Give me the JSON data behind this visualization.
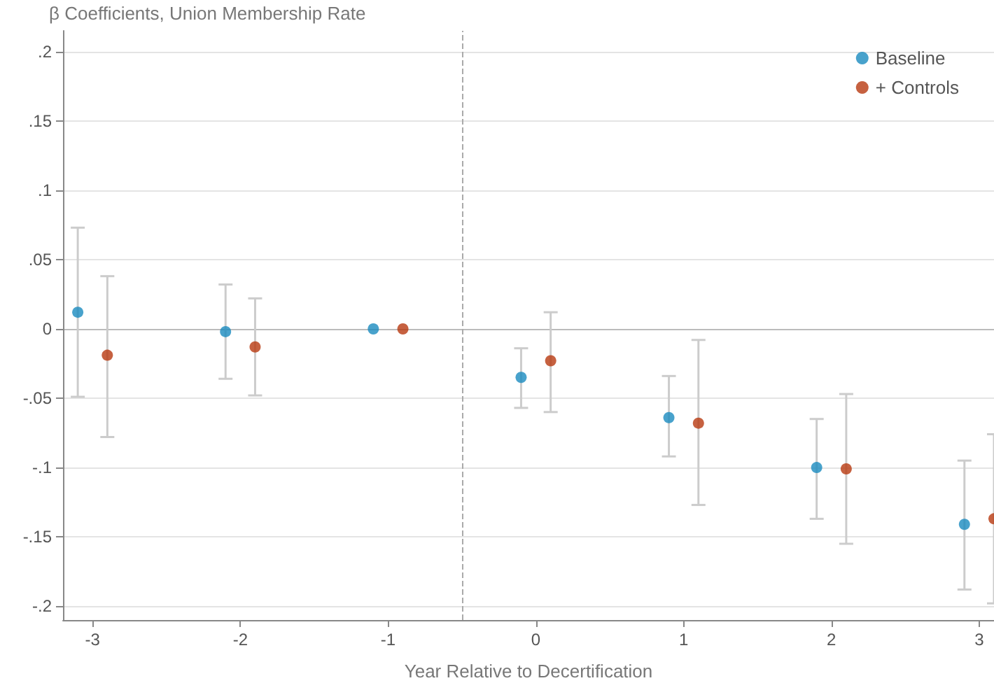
{
  "chart_data": {
    "type": "scatter",
    "ylabel": "β Coefficients, Union Membership Rate",
    "xlabel": "Year Relative to Decertification",
    "xlim": [
      -3.2,
      3.1
    ],
    "xticks": [
      -3,
      -2,
      -1,
      0,
      1,
      2,
      3
    ],
    "ylim": [
      -0.21,
      0.215
    ],
    "yticks": [
      {
        "value": -0.2,
        "label": "-.2"
      },
      {
        "value": -0.15,
        "label": "-.15"
      },
      {
        "value": -0.1,
        "label": "-.1"
      },
      {
        "value": -0.05,
        "label": "-.05"
      },
      {
        "value": 0,
        "label": "0"
      },
      {
        "value": 0.05,
        "label": ".05"
      },
      {
        "value": 0.1,
        "label": ".1"
      },
      {
        "value": 0.15,
        "label": ".15"
      },
      {
        "value": 0.2,
        "label": ".2"
      }
    ],
    "grid": "y",
    "legend": "top right",
    "marker": "circle",
    "ref_lines": [
      {
        "axis": "y",
        "value": 0,
        "color": "#bbbbbb",
        "line_style": "solid"
      },
      {
        "axis": "x",
        "value": -0.5,
        "color": "#aaaaaa",
        "line_style": "dashed"
      }
    ],
    "series": [
      {
        "name": "Baseline",
        "color": "#1a8bbf",
        "x": [
          -3.1,
          -2.1,
          -1.1,
          -0.1,
          0.9,
          1.9,
          2.9
        ],
        "values": [
          0.012,
          -0.002,
          0,
          -0.035,
          -0.064,
          -0.1,
          -0.141
        ],
        "errors": [
          [
            -0.049,
            0.073
          ],
          [
            -0.036,
            0.032
          ],
          null,
          [
            -0.057,
            -0.014
          ],
          [
            -0.092,
            -0.034
          ],
          [
            -0.137,
            -0.065
          ],
          [
            -0.188,
            -0.095
          ]
        ]
      },
      {
        "name": "+ Controls",
        "color": "#b83a10",
        "x": [
          -2.9,
          -1.9,
          -0.9,
          0.1,
          1.1,
          2.1,
          3.1
        ],
        "values": [
          -0.019,
          -0.013,
          0,
          -0.023,
          -0.068,
          -0.101,
          -0.137
        ],
        "errors": [
          [
            -0.078,
            0.038
          ],
          [
            -0.048,
            0.022
          ],
          null,
          [
            -0.06,
            0.012
          ],
          [
            -0.127,
            -0.008
          ],
          [
            -0.155,
            -0.047
          ],
          [
            -0.198,
            -0.076
          ]
        ]
      }
    ]
  }
}
